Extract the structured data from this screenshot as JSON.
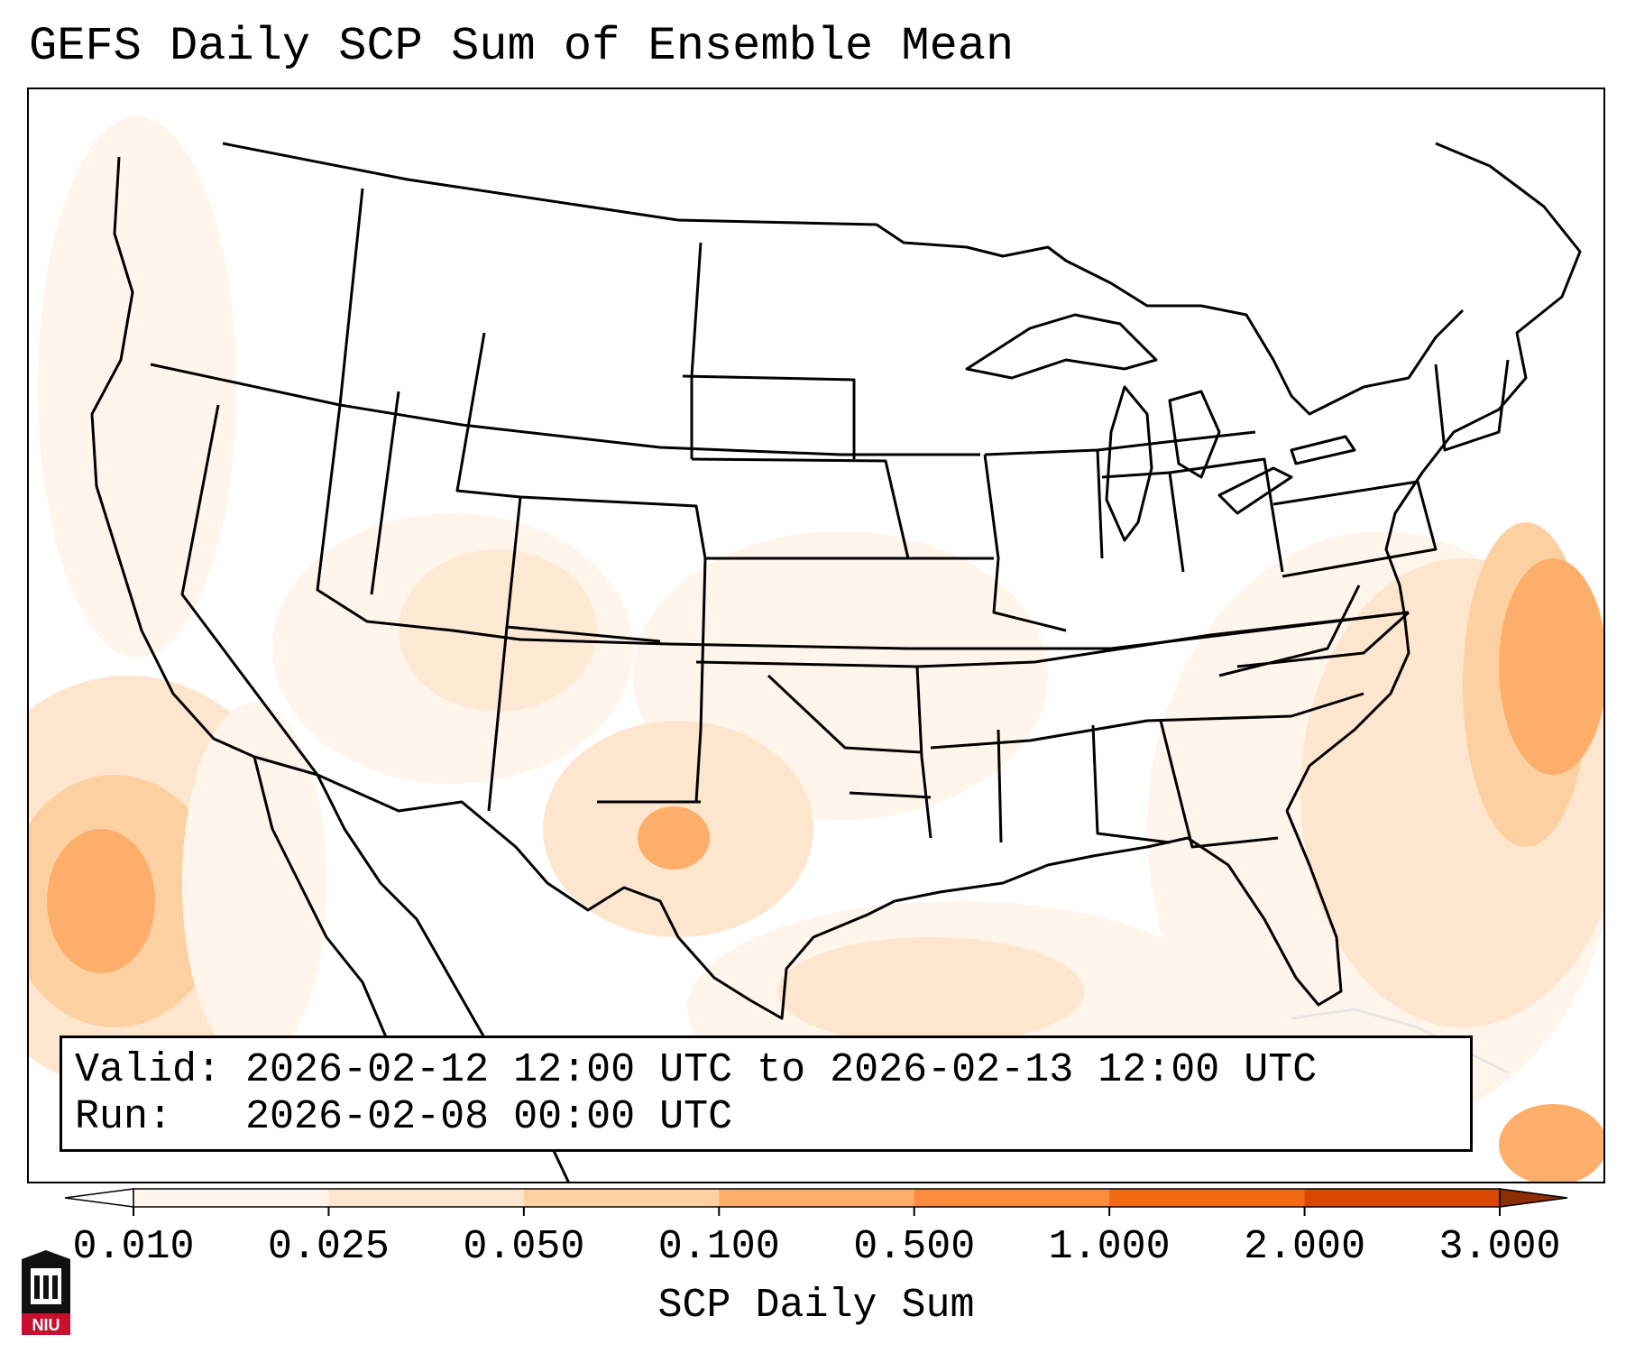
{
  "title": "GEFS Daily SCP Sum of Ensemble Mean",
  "info": {
    "valid_label": "Valid:",
    "valid_text": "2026-02-12 12:00 UTC to 2026-02-13 12:00 UTC",
    "run_label": "Run:",
    "run_text": "2026-02-08 00:00 UTC"
  },
  "colorbar": {
    "label": "SCP Daily Sum",
    "ticks": [
      "0.010",
      "0.025",
      "0.050",
      "0.100",
      "0.500",
      "1.000",
      "2.000",
      "3.000"
    ],
    "colors": [
      "#fff5eb",
      "#fee6ce",
      "#fdd0a2",
      "#fdae6b",
      "#fd8d3c",
      "#f16913",
      "#d94801",
      "#8c2d04"
    ],
    "under_color": "#ffffff",
    "extend": "both"
  },
  "logo": {
    "text": "NIU",
    "color": "#c8102e"
  },
  "map": {
    "projection": "Lambert Conformal",
    "extent": "CONUS",
    "field": "SCP daily sum, ensemble mean",
    "notable_maxima": [
      {
        "region": "Pacific off Baja California",
        "level": "0.100"
      },
      {
        "region": "West Texas",
        "level": "0.100"
      },
      {
        "region": "Western Atlantic off Southeast US",
        "level": "0.100"
      }
    ]
  }
}
